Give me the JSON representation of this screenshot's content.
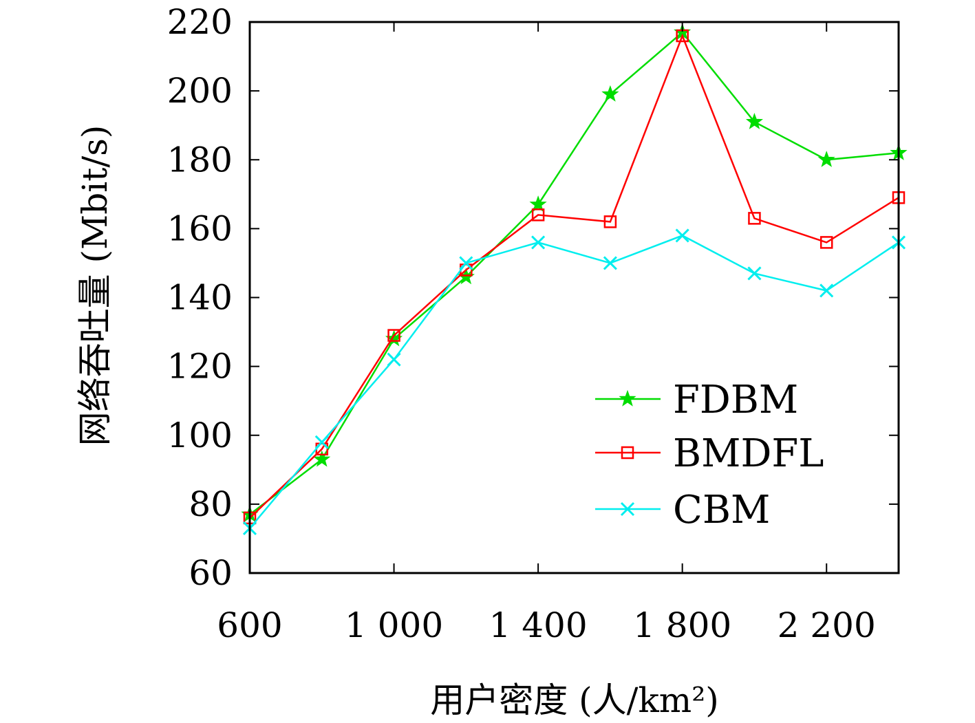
{
  "chart_data": {
    "type": "line",
    "xlabel": "用户密度 (人/km²)",
    "ylabel": "网络吞吐量 (Mbit/s)",
    "x": [
      600,
      800,
      1000,
      1200,
      1400,
      1600,
      1800,
      2000,
      2200,
      2400
    ],
    "xlim": [
      600,
      2400
    ],
    "ylim": [
      60,
      220
    ],
    "xticks": [
      600,
      1000,
      1400,
      1800,
      2200
    ],
    "xtick_labels": [
      "600",
      "1 000",
      "1 400",
      "1 800",
      "2 200"
    ],
    "yticks": [
      60,
      80,
      100,
      120,
      140,
      160,
      180,
      200,
      220
    ],
    "ytick_labels": [
      "60",
      "80",
      "100",
      "120",
      "140",
      "160",
      "180",
      "200",
      "220"
    ],
    "grid": false,
    "legend_position": "lower-right",
    "series": [
      {
        "name": "FDBM",
        "color": "#00dd00",
        "marker": "star",
        "values": [
          77,
          93,
          128,
          146,
          167,
          199,
          217,
          191,
          180,
          182
        ]
      },
      {
        "name": "BMDFL",
        "color": "#ff0000",
        "marker": "square",
        "values": [
          76,
          96,
          129,
          148,
          164,
          162,
          216,
          163,
          156,
          169
        ]
      },
      {
        "name": "CBM",
        "color": "#00eeee",
        "marker": "x",
        "values": [
          73,
          98,
          122,
          150,
          156,
          150,
          158,
          147,
          142,
          156
        ]
      }
    ]
  }
}
